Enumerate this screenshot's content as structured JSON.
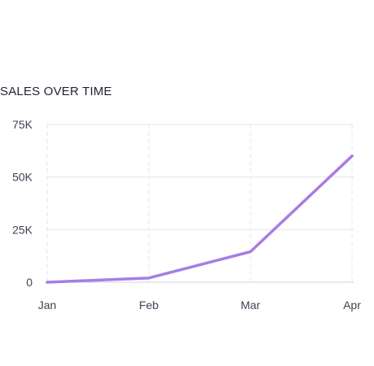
{
  "chart_data": {
    "type": "line",
    "title": "SALES OVER TIME",
    "xlabel": "",
    "ylabel": "",
    "categories": [
      "Jan",
      "Feb",
      "Mar",
      "Apr"
    ],
    "series": [
      {
        "values": [
          0,
          2000,
          14500,
          60000
        ]
      }
    ],
    "ylim": [
      0,
      75000
    ],
    "yticks": [
      0,
      25000,
      50000,
      75000
    ],
    "ytick_labels": [
      "0",
      "25K",
      "50K",
      "75K"
    ],
    "grid": true,
    "colors": {
      "line": "#a77de3",
      "grid_h": "#e4e6ec",
      "grid_v": "#e4e6ec",
      "axis": "#cfd3dc"
    }
  }
}
